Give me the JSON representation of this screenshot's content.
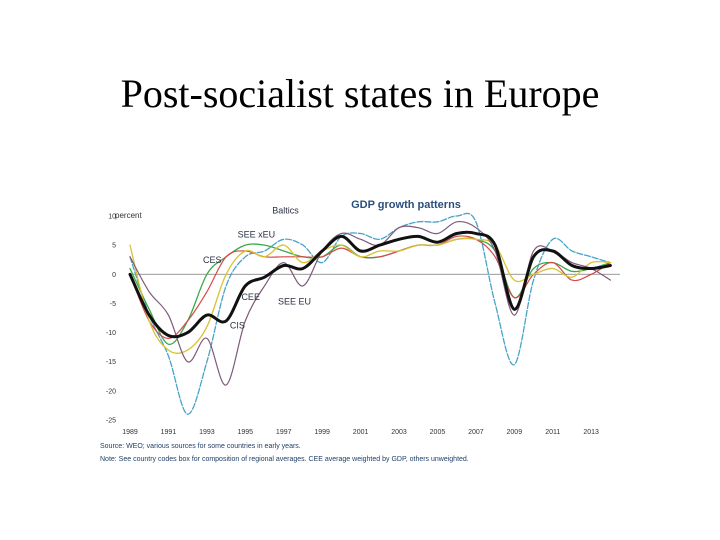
{
  "slide": {
    "title": "Post-socialist states in Europe"
  },
  "chart_data": {
    "type": "line",
    "title": "GDP growth patterns",
    "ylabel": "percent",
    "xlabel": "",
    "ylim": [
      -25,
      10
    ],
    "yticks": [
      10,
      5,
      0,
      -5,
      -10,
      -15,
      -20,
      -25
    ],
    "xlim": [
      1989,
      2014.5
    ],
    "xticks": [
      1989,
      1991,
      1993,
      1995,
      1997,
      1999,
      2001,
      2003,
      2005,
      2007,
      2009,
      2011,
      2013
    ],
    "x": [
      1989,
      1990,
      1991,
      1992,
      1993,
      1994,
      1995,
      1996,
      1997,
      1998,
      1999,
      2000,
      2001,
      2002,
      2003,
      2004,
      2005,
      2006,
      2007,
      2008,
      2009,
      2010,
      2011,
      2012,
      2013,
      2014
    ],
    "series": [
      {
        "name": "Baltics",
        "color": "#4aa3c8",
        "dashed": true,
        "width": 1.3,
        "values": [
          3,
          -7,
          -14,
          -24,
          -15,
          -2,
          3,
          4,
          6,
          5,
          2,
          6.5,
          7,
          6,
          8,
          9,
          9,
          10,
          9,
          -5,
          -15.5,
          -1,
          6,
          4,
          3,
          2
        ]
      },
      {
        "name": "SEE xEU",
        "color": "#3aaa4a",
        "dashed": false,
        "width": 1.3,
        "values": [
          1,
          -6,
          -12,
          -8,
          0,
          3,
          5,
          5,
          4,
          3,
          3,
          5,
          3,
          3,
          4,
          5,
          5,
          6,
          6,
          4,
          -4,
          1,
          2,
          0.5,
          1,
          2
        ]
      },
      {
        "name": "CES",
        "color": "#d64a4a",
        "dashed": false,
        "width": 1.2,
        "values": [
          0,
          -8,
          -11,
          -8,
          -3,
          3,
          4,
          3,
          3,
          3,
          3,
          4.5,
          3,
          3,
          4,
          5,
          5,
          6.5,
          6,
          3,
          -4,
          0,
          2,
          -1,
          0,
          2
        ]
      },
      {
        "name": "SEE EU",
        "color": "#d9c233",
        "dashed": false,
        "width": 1.3,
        "values": [
          5,
          -8,
          -13,
          -13,
          -9,
          0,
          4,
          3,
          5,
          2,
          4,
          5,
          3,
          4,
          4,
          5,
          5,
          6,
          6,
          5,
          -1,
          0,
          1,
          -0.5,
          2,
          2
        ]
      },
      {
        "name": "CIS",
        "color": "#7d5a7a",
        "dashed": false,
        "width": 1.2,
        "values": [
          3,
          -3,
          -7,
          -15,
          -11,
          -19,
          -8,
          -2,
          2,
          -2,
          4,
          7,
          6,
          5,
          8,
          8,
          7,
          9,
          8,
          4,
          -7,
          4,
          4,
          2,
          1,
          -1
        ]
      },
      {
        "name": "CEE",
        "color": "#111111",
        "dashed": false,
        "width": 3,
        "values": [
          0,
          -7,
          -10.5,
          -10,
          -7,
          -8,
          -2,
          -0.5,
          1.5,
          1,
          4,
          6.5,
          4,
          5,
          6,
          6.5,
          5.5,
          7,
          7,
          5,
          -6,
          3,
          4,
          1.5,
          1,
          1.5
        ]
      }
    ],
    "labels": [
      {
        "text": "Baltics",
        "year": 1996.4,
        "value": 10.4
      },
      {
        "text": "SEE xEU",
        "year": 1994.6,
        "value": 6.3
      },
      {
        "text": "CES",
        "year": 1992.8,
        "value": 1.9
      },
      {
        "text": "CEE",
        "year": 1994.8,
        "value": -4.4
      },
      {
        "text": "SEE EU",
        "year": 1996.7,
        "value": -5.2
      },
      {
        "text": "CIS",
        "year": 1994.2,
        "value": -9.3
      }
    ],
    "source_note": "Source: WEO; various sources for some countries in early years.",
    "composition_note": "Note: See country codes box for composition of regional averages. CEE average weighted by GDP, others unweighted."
  }
}
